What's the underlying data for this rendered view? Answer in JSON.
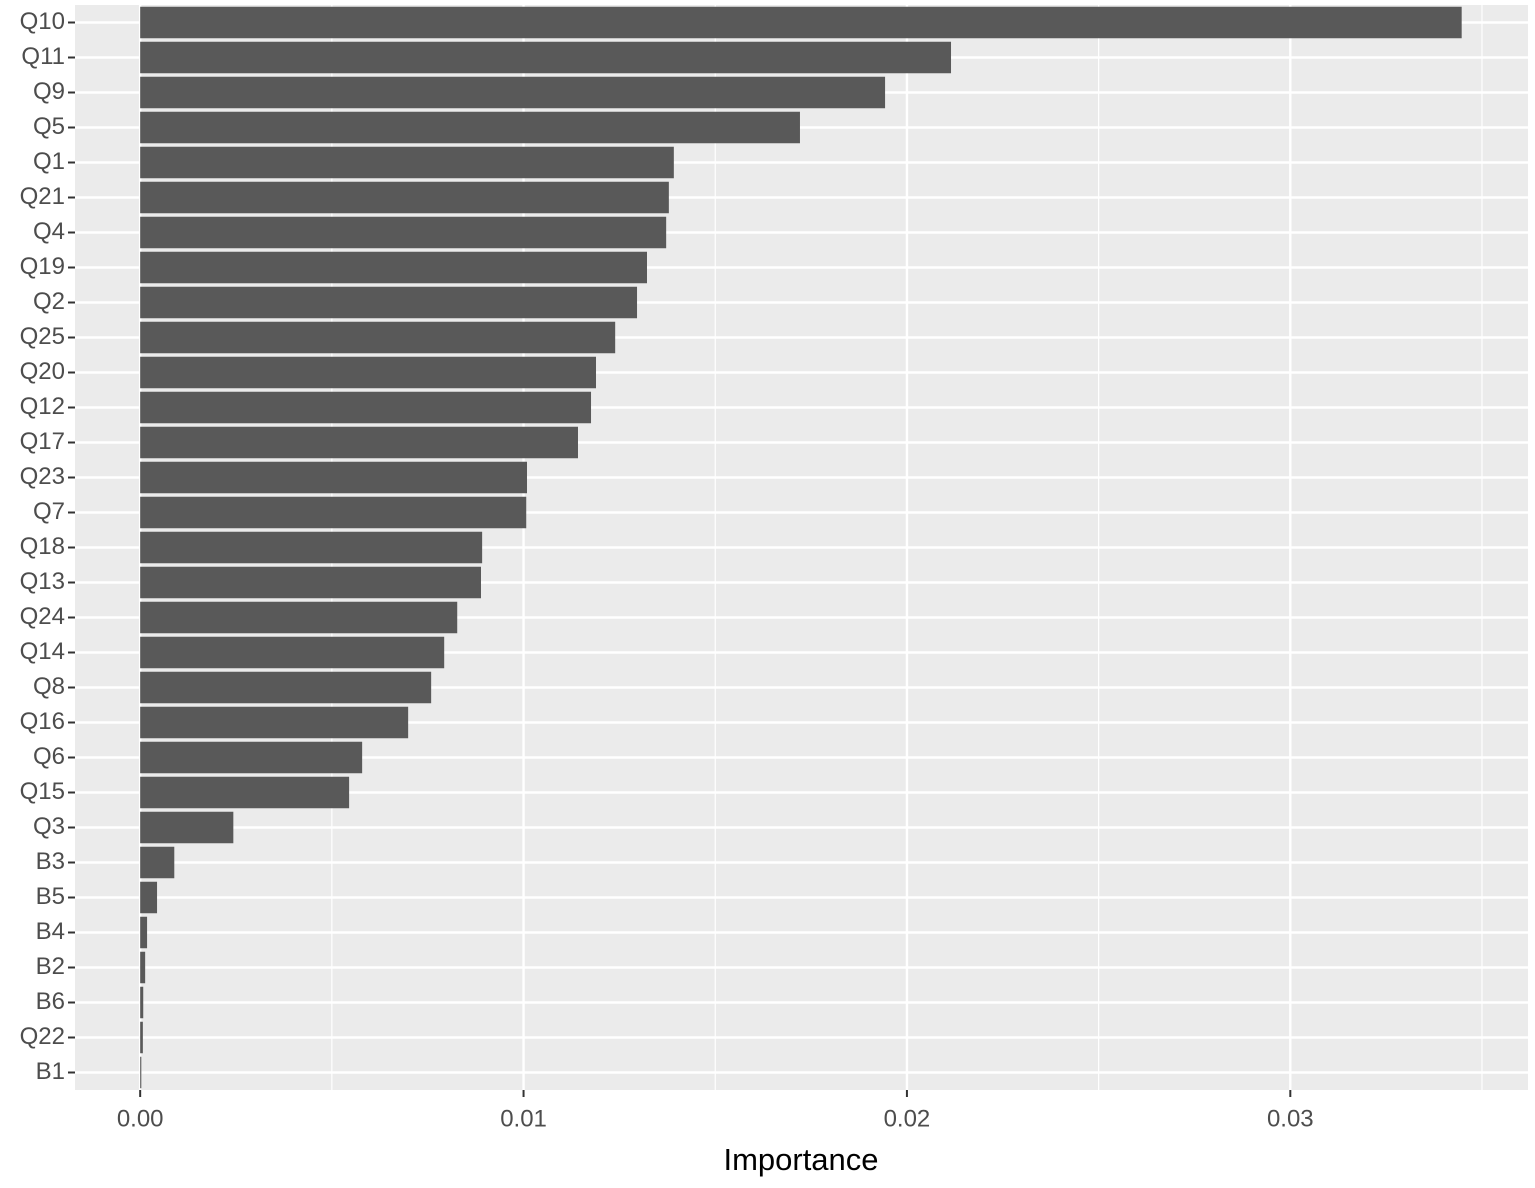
{
  "chart_data": {
    "type": "bar",
    "orientation": "horizontal",
    "x_label": "Importance",
    "categories": [
      "Q10",
      "Q11",
      "Q9",
      "Q5",
      "Q1",
      "Q21",
      "Q4",
      "Q19",
      "Q2",
      "Q25",
      "Q20",
      "Q12",
      "Q17",
      "Q23",
      "Q7",
      "Q18",
      "Q13",
      "Q24",
      "Q14",
      "Q8",
      "Q16",
      "Q6",
      "Q15",
      "Q3",
      "B3",
      "B5",
      "B4",
      "B2",
      "B6",
      "Q22",
      "B1"
    ],
    "values": [
      0.03447,
      0.02115,
      0.01943,
      0.01721,
      0.01392,
      0.01379,
      0.01372,
      0.01322,
      0.01296,
      0.01239,
      0.01189,
      0.01176,
      0.01142,
      0.01009,
      0.01007,
      0.00892,
      0.00889,
      0.00827,
      0.00793,
      0.00759,
      0.00699,
      0.00579,
      0.00545,
      0.00243,
      0.00089,
      0.00044,
      0.00018,
      0.00013,
      8e-05,
      7e-05,
      3e-05
    ],
    "color": "#595959",
    "xlim": [
      -0.0017,
      0.0362
    ],
    "xticks": [
      {
        "value": 0,
        "label": "0.00"
      },
      0.01,
      0.02,
      0.03
    ],
    "xminor_ticks": [
      0.005,
      0.015,
      0.025,
      0.035
    ],
    "grid": true
  }
}
